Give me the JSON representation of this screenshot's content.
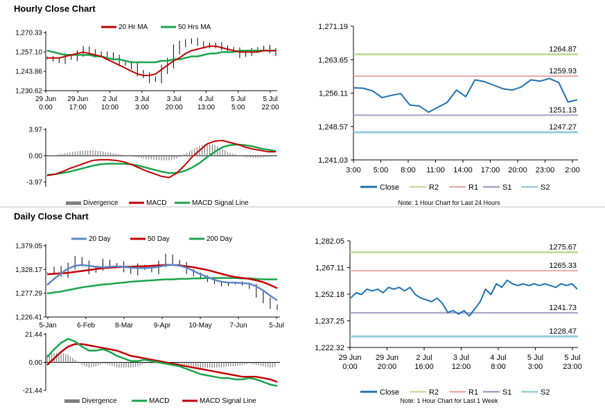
{
  "sections": {
    "hourly_title": "Hourly Close Chart",
    "daily_title": "Daily Close Chart"
  },
  "colors": {
    "red": "#c00000",
    "green": "#1aa34a",
    "blue": "#1f6fb0",
    "lightgreen": "#c3dd9b",
    "pink": "#e9a9a9",
    "lavender": "#a59fc6",
    "lightblue": "#93cddd",
    "steelblue": "#5b86c5",
    "grey": "#7f7f7f",
    "dark": "#000000"
  },
  "chart_data": [
    {
      "id": "hourly_price",
      "type": "line",
      "title": "Hourly Close Chart",
      "legend": [
        "20 Hr MA",
        "50 Hrs MA"
      ],
      "y_ticks": [
        "1,270.33",
        "1,257.10",
        "1,243.86",
        "1,230.62"
      ],
      "ylim": [
        1230.62,
        1270.33
      ],
      "x_ticks": [
        [
          "29 Jun",
          "0:00"
        ],
        [
          "29 Jun",
          "17:00"
        ],
        [
          "2 Jul",
          "10:00"
        ],
        [
          "3 Jul",
          "3:00"
        ],
        [
          "3 Jul",
          "20:00"
        ],
        [
          "4 Jul",
          "13:00"
        ],
        [
          "5 Jul",
          "5:00"
        ],
        [
          "5 Jul",
          "22:00"
        ]
      ],
      "series": [
        {
          "name": "Price",
          "values": [
            1253,
            1252,
            1251,
            1254,
            1253,
            1256,
            1259,
            1257,
            1255,
            1256,
            1255,
            1253,
            1250,
            1249,
            1247,
            1243,
            1241,
            1238,
            1239,
            1245,
            1250,
            1258,
            1262,
            1264,
            1265,
            1263,
            1262,
            1261,
            1262,
            1260,
            1259,
            1258,
            1255,
            1256,
            1258,
            1259,
            1260,
            1258,
            1256
          ]
        },
        {
          "name": "20 Hr MA",
          "values": [
            1253,
            1253,
            1253,
            1254,
            1255,
            1256,
            1257,
            1256,
            1255,
            1254,
            1252,
            1250,
            1248,
            1246,
            1244,
            1242,
            1241,
            1241,
            1242,
            1245,
            1248,
            1251,
            1253,
            1256,
            1258,
            1259,
            1260,
            1261,
            1261,
            1260,
            1259,
            1258,
            1257,
            1257,
            1257,
            1257,
            1258,
            1258,
            1258
          ]
        },
        {
          "name": "50 Hrs MA",
          "values": [
            1258,
            1257,
            1256,
            1255,
            1255,
            1255,
            1255,
            1255,
            1254,
            1254,
            1253,
            1252,
            1252,
            1251,
            1250,
            1250,
            1250,
            1250,
            1250,
            1251,
            1251,
            1252,
            1252,
            1253,
            1254,
            1254,
            1255,
            1256,
            1256,
            1257,
            1257,
            1257,
            1258,
            1258,
            1258,
            1258,
            1258,
            1258,
            1258
          ]
        }
      ]
    },
    {
      "id": "hourly_macd",
      "type": "line",
      "legend": [
        "Divergence",
        "MACD",
        "MACD Signal Line"
      ],
      "y_ticks": [
        "3.97",
        "0.00",
        "-3.97"
      ],
      "ylim": [
        -3.97,
        3.97
      ],
      "series": [
        {
          "name": "MACD",
          "values": [
            -3.0,
            -2.8,
            -2.4,
            -1.9,
            -1.5,
            -1.1,
            -0.7,
            -0.6,
            -0.6,
            -0.7,
            -0.9,
            -1.3,
            -1.8,
            -2.3,
            -2.7,
            -3.1,
            -3.3,
            -2.6,
            -1.5,
            -0.2,
            0.8,
            1.8,
            2.2,
            2.3,
            2.0,
            1.7,
            1.3,
            1.0,
            0.8,
            0.6,
            0.6
          ]
        },
        {
          "name": "MACD Signal Line",
          "values": [
            -2.9,
            -2.8,
            -2.6,
            -2.4,
            -2.1,
            -1.8,
            -1.5,
            -1.3,
            -1.2,
            -1.2,
            -1.2,
            -1.3,
            -1.5,
            -1.8,
            -2.1,
            -2.4,
            -2.6,
            -2.6,
            -2.3,
            -1.8,
            -1.1,
            -0.2,
            0.6,
            1.3,
            1.6,
            1.7,
            1.6,
            1.4,
            1.1,
            0.9,
            0.7
          ]
        },
        {
          "name": "Divergence",
          "values": [
            0.0,
            0.1,
            0.3,
            0.5,
            0.7,
            0.8,
            0.8,
            0.7,
            0.5,
            0.3,
            0.1,
            -0.1,
            -0.3,
            -0.5,
            -0.6,
            -0.7,
            -0.7,
            -0.4,
            0.2,
            0.9,
            1.5,
            1.9,
            1.6,
            1.0,
            0.4,
            0.1,
            -0.2,
            -0.3,
            -0.3,
            -0.2,
            -0.1
          ]
        }
      ]
    },
    {
      "id": "hourly_levels",
      "type": "line",
      "y_ticks": [
        "1,271.19",
        "1,263.65",
        "1,256.11",
        "1,248.57",
        "1,241.03"
      ],
      "ylim": [
        1241.03,
        1271.19
      ],
      "x_ticks": [
        "3:00",
        "5:00",
        "8:00",
        "11:00",
        "14:00",
        "17:00",
        "20:00",
        "23:00",
        "2:00"
      ],
      "legend": [
        "Close",
        "R2",
        "R1",
        "S1",
        "S2"
      ],
      "levels": {
        "R2": "1264.87",
        "R1": "1259.93",
        "S1": "1251.13",
        "S2": "1247.27"
      },
      "note": "Note: 1 Hour Chart for Last 24 Hours",
      "series": [
        {
          "name": "Close",
          "values": [
            1257.3,
            1257.2,
            1256.6,
            1255.1,
            1255.6,
            1256.0,
            1253.4,
            1253.2,
            1251.8,
            1252.9,
            1254.0,
            1256.8,
            1255.3,
            1259.1,
            1258.7,
            1257.9,
            1257.1,
            1256.8,
            1257.5,
            1259.1,
            1258.8,
            1259.4,
            1258.5,
            1254.1,
            1254.6
          ]
        }
      ]
    },
    {
      "id": "daily_price",
      "type": "line",
      "title": "Daily Close Chart",
      "legend": [
        "20 Day",
        "50 Day",
        "200 Day"
      ],
      "y_ticks": [
        "1,379.05",
        "1,328.17",
        "1,277.29",
        "1,226.41"
      ],
      "ylim": [
        1226.41,
        1379.05
      ],
      "x_ticks": [
        "5-Jan",
        "6-Feb",
        "8-Mar",
        "9-Apr",
        "10-May",
        "7-Jun",
        "5-Jul"
      ],
      "series": [
        {
          "name": "Price",
          "values": [
            1322,
            1330,
            1318,
            1335,
            1350,
            1340,
            1325,
            1332,
            1345,
            1338,
            1340,
            1328,
            1322,
            1335,
            1330,
            1325,
            1340,
            1355,
            1345,
            1338,
            1325,
            1318,
            1312,
            1305,
            1300,
            1295,
            1298,
            1300,
            1296,
            1290,
            1275,
            1262,
            1250,
            1245
          ]
        },
        {
          "name": "20 Day",
          "values": [
            1295,
            1308,
            1320,
            1330,
            1336,
            1338,
            1336,
            1334,
            1333,
            1334,
            1335,
            1334,
            1332,
            1331,
            1331,
            1332,
            1334,
            1337,
            1338,
            1336,
            1332,
            1325,
            1318,
            1312,
            1306,
            1302,
            1300,
            1300,
            1299,
            1298,
            1292,
            1283,
            1272,
            1262
          ]
        },
        {
          "name": "50 Day",
          "values": [
            1318,
            1319,
            1320,
            1321,
            1323,
            1325,
            1327,
            1329,
            1331,
            1332,
            1333,
            1334,
            1334,
            1335,
            1335,
            1336,
            1337,
            1338,
            1338,
            1337,
            1335,
            1333,
            1330,
            1327,
            1323,
            1319,
            1315,
            1312,
            1310,
            1308,
            1305,
            1301,
            1295,
            1288
          ]
        },
        {
          "name": "200 Day",
          "values": [
            1277,
            1279,
            1281,
            1284,
            1287,
            1290,
            1292,
            1294,
            1296,
            1297,
            1299,
            1300,
            1302,
            1303,
            1304,
            1305,
            1306,
            1307,
            1307,
            1308,
            1308,
            1309,
            1309,
            1310,
            1310,
            1310,
            1310,
            1310,
            1309,
            1309,
            1308,
            1307,
            1307,
            1307
          ]
        }
      ]
    },
    {
      "id": "daily_macd",
      "type": "line",
      "legend": [
        "Divergence",
        "MACD",
        "MACD Signal Line"
      ],
      "y_ticks": [
        "21.44",
        "0.00",
        "-21.44"
      ],
      "ylim": [
        -21.44,
        21.44
      ],
      "series": [
        {
          "name": "MACD",
          "values": [
            4,
            10,
            15,
            18,
            16,
            12,
            9,
            9,
            10,
            8,
            5,
            3,
            1,
            1,
            2,
            1,
            0,
            -1,
            -2,
            -3,
            -5,
            -7,
            -9,
            -10,
            -11,
            -12,
            -12,
            -13,
            -13,
            -12,
            -13,
            -15,
            -17,
            -18
          ]
        },
        {
          "name": "MACD Signal Line",
          "values": [
            -2,
            3,
            8,
            12,
            14,
            14,
            13,
            12,
            11,
            10,
            9,
            7,
            5,
            4,
            3,
            2,
            1,
            0,
            -1,
            -2,
            -3,
            -4,
            -5,
            -6,
            -7,
            -8,
            -9,
            -10,
            -11,
            -11,
            -11,
            -12,
            -13,
            -15
          ]
        },
        {
          "name": "Divergence",
          "values": [
            6,
            7,
            7,
            6,
            2,
            -2,
            -4,
            -3,
            -1,
            -2,
            -4,
            -4,
            -4,
            -3,
            -1,
            -1,
            -1,
            -1,
            -1,
            -1,
            -2,
            -3,
            -4,
            -4,
            -4,
            -4,
            -3,
            -3,
            -2,
            -1,
            -2,
            -3,
            -4,
            -3
          ]
        }
      ]
    },
    {
      "id": "daily_levels",
      "type": "line",
      "y_ticks": [
        "1,282.05",
        "1,267.11",
        "1,252.18",
        "1,237.25",
        "1,222.32"
      ],
      "ylim": [
        1222.32,
        1282.05
      ],
      "x_ticks": [
        [
          "29 Jun",
          "0:00"
        ],
        [
          "29 Jun",
          "20:00"
        ],
        [
          "2 Jul",
          "16:00"
        ],
        [
          "3 Jul",
          "12:00"
        ],
        [
          "4 Jul",
          "8:00"
        ],
        [
          "5 Jul",
          "3:00"
        ],
        [
          "5 Jul",
          "23:00"
        ]
      ],
      "legend": [
        "Close",
        "R2",
        "R1",
        "S1",
        "S2"
      ],
      "levels": {
        "R2": "1275.67",
        "R1": "1265.33",
        "S1": "1241.73",
        "S2": "1228.47"
      },
      "note": "Note: 1 Hour Chart for Last 1 Week",
      "series": [
        {
          "name": "Close",
          "values": [
            1250,
            1253,
            1252,
            1255,
            1254,
            1255,
            1253,
            1256,
            1255,
            1256,
            1254,
            1256,
            1252,
            1250,
            1249,
            1248,
            1250,
            1247,
            1242,
            1243,
            1241,
            1243,
            1240,
            1244,
            1248,
            1255,
            1252,
            1258,
            1256,
            1260,
            1258,
            1257,
            1258,
            1257,
            1258,
            1257,
            1258,
            1257,
            1256,
            1258,
            1257,
            1258,
            1255
          ]
        }
      ]
    }
  ]
}
